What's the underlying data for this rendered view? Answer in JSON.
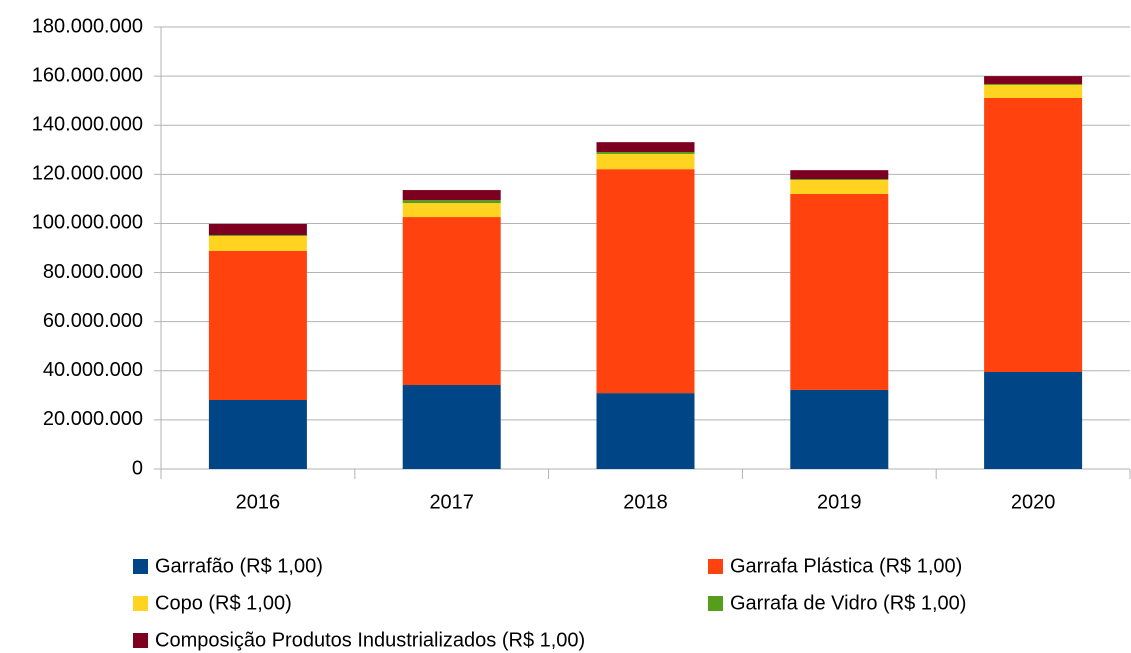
{
  "chart_data": {
    "type": "stacked_bar",
    "categories": [
      "2016",
      "2017",
      "2018",
      "2019",
      "2020"
    ],
    "series": [
      {
        "name": "Garrafão (R$ 1,00)",
        "color": "#004586",
        "values": [
          28100000,
          34200000,
          30900000,
          32200000,
          39500000
        ]
      },
      {
        "name": "Garrafa Plástica (R$ 1,00)",
        "color": "#ff420e",
        "values": [
          60700000,
          68400000,
          91200000,
          79800000,
          111600000
        ]
      },
      {
        "name": "Copo (R$ 1,00)",
        "color": "#ffd320",
        "values": [
          6100000,
          5700000,
          6200000,
          5700000,
          5300000
        ]
      },
      {
        "name": "Garrafa de Vidro (R$ 1,00)",
        "color": "#579d1c",
        "values": [
          400000,
          1200000,
          800000,
          400000,
          400000
        ]
      },
      {
        "name": "Composição Produtos Industrializados (R$ 1,00)",
        "color": "#7e0021",
        "values": [
          4500000,
          4100000,
          4000000,
          3600000,
          3200000
        ]
      }
    ],
    "ylim": [
      0,
      180000000
    ],
    "yticks": [
      0,
      {
        "value": 20000000,
        "label": "20.000.000"
      },
      {
        "value": 40000000,
        "label": "40.000.000"
      },
      {
        "value": 60000000,
        "label": "60.000.000"
      },
      {
        "value": 80000000,
        "label": "80.000.000"
      },
      {
        "value": 100000000,
        "label": "100.000.000"
      },
      {
        "value": 120000000,
        "label": "120.000.000"
      },
      {
        "value": 140000000,
        "label": "140.000.000"
      },
      {
        "value": 160000000,
        "label": "160.000.000"
      },
      {
        "value": 180000000,
        "label": "180.000.000"
      }
    ],
    "grid": true,
    "legend": "bottom"
  }
}
